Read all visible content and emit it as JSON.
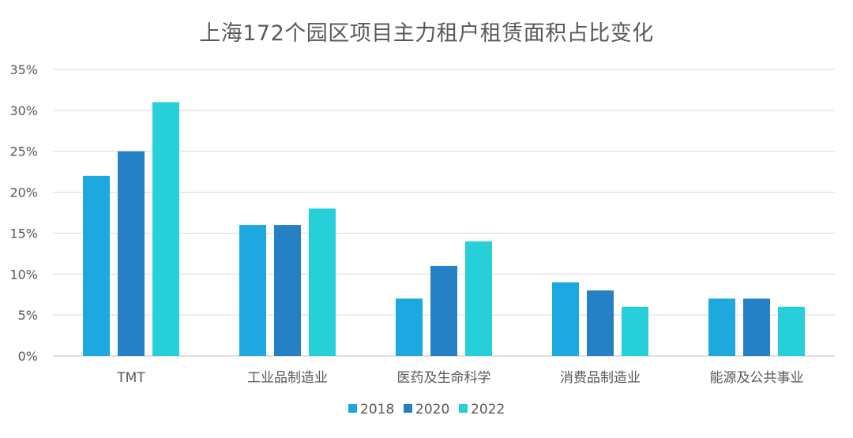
{
  "chart_data": {
    "type": "bar",
    "title": "上海172个园区项目主力租户租赁面积占比变化",
    "categories": [
      "TMT",
      "工业品制造业",
      "医药及生命科学",
      "消费品制造业",
      "能源及公共事业"
    ],
    "series": [
      {
        "name": "2018",
        "color": "#1ea8e0",
        "values": [
          22,
          16,
          7,
          9,
          7
        ]
      },
      {
        "name": "2020",
        "color": "#2680c6",
        "values": [
          25,
          16,
          11,
          8,
          7
        ]
      },
      {
        "name": "2022",
        "color": "#27cfd9",
        "values": [
          31,
          18,
          14,
          6,
          6
        ]
      }
    ],
    "ylim": [
      0,
      35
    ],
    "yticks": [
      "0%",
      "5%",
      "10%",
      "15%",
      "20%",
      "25%",
      "30%",
      "35%"
    ],
    "xlabel": "",
    "ylabel": "",
    "grid": true,
    "legend_position": "bottom"
  }
}
